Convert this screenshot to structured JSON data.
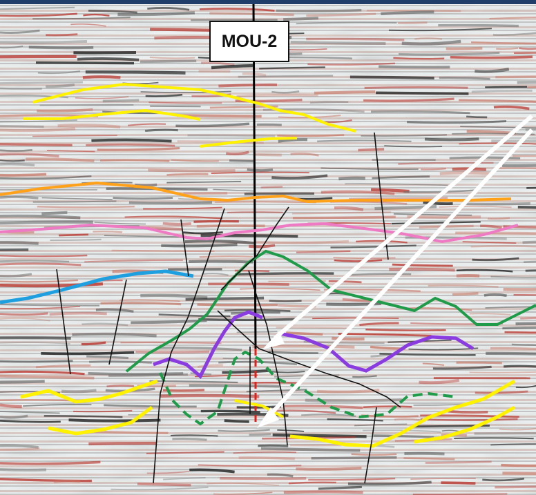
{
  "well": {
    "label": "MOU-2"
  },
  "colors": {
    "frame": "#1f3f6a",
    "background": "#e9eef0",
    "amplitude_positive": "#b8322a",
    "amplitude_negative": "#1a1a1a",
    "horizon_yellow": "#fff200",
    "horizon_orange": "#ffa21a",
    "horizon_pink": "#ee7ac4",
    "horizon_blue": "#1ea0e0",
    "horizon_green": "#1f9b4a",
    "horizon_purple": "#8a3ce0",
    "fault_line": "#111111",
    "well_track": "#000000",
    "well_projection": "#e0201a",
    "arrow": "#ffffff"
  }
}
